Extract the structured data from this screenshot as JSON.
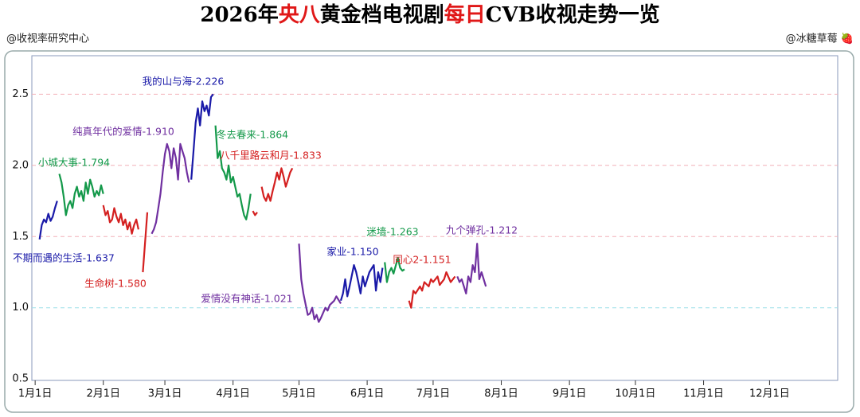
{
  "chart_data": {
    "type": "line",
    "title_parts": [
      "2026年",
      "央八",
      "黄金档电视剧",
      "每日",
      "CVB收视走势一览"
    ],
    "source": "@收视率研究中心",
    "author": "@冰糖草莓 🍓",
    "xlim": [
      -1.5,
      365
    ],
    "ylim": [
      0.49,
      2.77
    ],
    "xticks": [
      {
        "value": 0,
        "label": "1月1日"
      },
      {
        "value": 31,
        "label": "2月1日"
      },
      {
        "value": 59,
        "label": "3月1日"
      },
      {
        "value": 90,
        "label": "4月1日"
      },
      {
        "value": 120,
        "label": "5月1日"
      },
      {
        "value": 151,
        "label": "6月1日"
      },
      {
        "value": 181,
        "label": "7月1日"
      },
      {
        "value": 212,
        "label": "8月1日"
      },
      {
        "value": 243,
        "label": "9月1日"
      },
      {
        "value": 273,
        "label": "10月1日"
      },
      {
        "value": 304,
        "label": "11月1日"
      },
      {
        "value": 334,
        "label": "12月1日"
      }
    ],
    "yticks": [
      0.5,
      {
        "value": 1.0,
        "label": "1.0"
      },
      1.5,
      {
        "value": 2.0,
        "label": "2.0"
      },
      2.5
    ],
    "grid": true,
    "series": [
      {
        "name": "不期而遇的生活-1.637",
        "color": "#1a1aa8",
        "x": [
          2,
          3,
          4,
          5,
          6,
          7,
          8,
          9,
          10
        ],
        "values": [
          1.48,
          1.58,
          1.62,
          1.6,
          1.66,
          1.61,
          1.64,
          1.7,
          1.75
        ]
      },
      {
        "name": "小城大事-1.794",
        "color": "#14994a",
        "x": [
          11,
          12,
          13,
          14,
          15,
          16,
          17,
          18,
          19,
          20,
          21,
          22,
          23,
          24,
          25,
          26,
          27,
          28,
          29,
          30,
          31
        ],
        "values": [
          1.94,
          1.88,
          1.78,
          1.65,
          1.72,
          1.75,
          1.7,
          1.8,
          1.85,
          1.78,
          1.82,
          1.75,
          1.88,
          1.8,
          1.9,
          1.85,
          1.78,
          1.82,
          1.79,
          1.86,
          1.8
        ]
      },
      {
        "name": "生命树-1.580",
        "color": "#d42020",
        "x": [
          31,
          32,
          33,
          34,
          35,
          36,
          37,
          38,
          39,
          40,
          41,
          42,
          43,
          44,
          45,
          46,
          47,
          48,
          49,
          51
        ],
        "values": [
          1.72,
          1.65,
          1.68,
          1.6,
          1.62,
          1.7,
          1.64,
          1.6,
          1.66,
          1.58,
          1.62,
          1.55,
          1.6,
          1.52,
          1.58,
          1.62,
          1.55,
          null,
          1.25,
          1.67
        ]
      },
      {
        "name": "纯真年代的爱情-1.910",
        "color": "#7030a0",
        "x": [
          53,
          54,
          55,
          56,
          57,
          58,
          59,
          60,
          61,
          62,
          63,
          64,
          65,
          66,
          67,
          68,
          69,
          70
        ],
        "values": [
          1.52,
          1.55,
          1.6,
          1.7,
          1.8,
          1.95,
          2.08,
          2.15,
          2.1,
          1.98,
          2.12,
          2.05,
          1.9,
          2.15,
          2.1,
          2.05,
          1.95,
          1.88
        ]
      },
      {
        "name": "我的山与海-2.226",
        "color": "#1a1aa8",
        "x": [
          71,
          72,
          73,
          74,
          75,
          76,
          77,
          78,
          79,
          80,
          81
        ],
        "values": [
          1.9,
          2.1,
          2.3,
          2.4,
          2.28,
          2.45,
          2.38,
          2.42,
          2.35,
          2.48,
          2.5
        ]
      },
      {
        "name": "冬去春来-1.864",
        "color": "#14994a",
        "x": [
          82,
          83,
          84,
          85,
          86,
          87,
          88,
          89,
          90,
          91,
          92,
          93,
          94,
          95,
          96,
          97,
          98
        ],
        "values": [
          2.28,
          2.05,
          2.1,
          1.98,
          1.95,
          1.9,
          2.0,
          1.88,
          1.92,
          1.85,
          1.78,
          1.8,
          1.72,
          1.65,
          1.62,
          1.7,
          1.8
        ]
      },
      {
        "name": "八千里路云和月-1.833",
        "color": "#d42020",
        "x": [
          99,
          100,
          101,
          102,
          103,
          104,
          105,
          106,
          107,
          108,
          109,
          110,
          111,
          112,
          113,
          114,
          115,
          116,
          117
        ],
        "values": [
          1.68,
          1.65,
          1.67,
          null,
          1.85,
          1.78,
          1.75,
          1.8,
          1.75,
          1.82,
          1.88,
          1.95,
          1.9,
          1.98,
          1.92,
          1.85,
          1.9,
          1.95,
          1.98
        ]
      },
      {
        "name": "爱情没有神话-1.021",
        "color": "#7030a0",
        "x": [
          120,
          121,
          122,
          124,
          125,
          126,
          127,
          128,
          129,
          130,
          132,
          133,
          134,
          136,
          137,
          139
        ],
        "values": [
          1.45,
          1.2,
          1.1,
          0.95,
          0.96,
          1.0,
          0.92,
          0.95,
          0.9,
          0.93,
          1.0,
          0.98,
          1.02,
          1.05,
          1.08,
          1.03
        ]
      },
      {
        "name": "家业-1.150",
        "color": "#1a1aa8",
        "x": [
          139,
          140,
          141,
          142,
          143,
          145,
          146,
          147,
          148,
          149,
          150,
          151,
          152,
          154,
          155,
          156,
          157,
          158
        ],
        "values": [
          1.05,
          1.1,
          1.2,
          1.08,
          1.15,
          1.3,
          1.25,
          1.18,
          1.1,
          1.22,
          1.15,
          1.2,
          1.25,
          1.3,
          1.12,
          1.25,
          1.18,
          1.28
        ]
      },
      {
        "name": "迷墙-1.263",
        "color": "#14994a",
        "x": [
          159,
          160,
          161,
          162,
          163,
          165,
          166,
          167,
          168
        ],
        "values": [
          1.32,
          1.18,
          1.25,
          1.28,
          1.24,
          1.35,
          1.28,
          1.26,
          1.27
        ]
      },
      {
        "name": "同心2-1.151",
        "color": "#d42020",
        "x": [
          170,
          171,
          172,
          173,
          175,
          176,
          177,
          179,
          180,
          181,
          183,
          184,
          186,
          187,
          189,
          191
        ],
        "values": [
          1.05,
          1.0,
          1.12,
          1.1,
          1.15,
          1.12,
          1.18,
          1.15,
          1.2,
          1.18,
          1.22,
          1.16,
          1.2,
          1.25,
          1.18,
          1.22
        ]
      },
      {
        "name": "九个弹孔-1.212",
        "color": "#7030a0",
        "x": [
          192,
          193,
          194,
          195,
          196,
          197,
          198,
          199,
          200,
          201,
          202,
          203,
          205
        ],
        "values": [
          1.22,
          1.18,
          1.2,
          1.15,
          1.1,
          1.22,
          1.18,
          1.3,
          1.25,
          1.45,
          1.2,
          1.25,
          1.15
        ]
      }
    ]
  }
}
